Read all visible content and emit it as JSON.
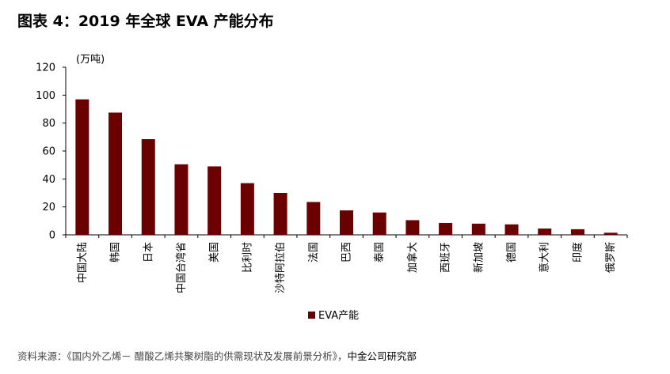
{
  "figure_title": "图表 4：2019 年全球 EVA 产能分布",
  "source_prefix": "资料来源：《国内外乙烯－ 醋酸乙烯共聚树脂的供需现状及发展前景分析》，",
  "source_org": "中金公司研究部",
  "colors": {
    "bar": "#6B0000",
    "axis": "#000000"
  },
  "chart_data": {
    "type": "bar",
    "title": "",
    "unit_label": "(万吨)",
    "xlabel": "",
    "ylabel": "",
    "ylim": [
      0,
      120
    ],
    "yticks": [
      0,
      20,
      40,
      60,
      80,
      100,
      120
    ],
    "grid": false,
    "legend_position": "bottom",
    "categories": [
      "中国大陆",
      "韩国",
      "日本",
      "中国台湾省",
      "美国",
      "比利时",
      "沙特阿拉伯",
      "法国",
      "巴西",
      "泰国",
      "加拿大",
      "西班牙",
      "新加坡",
      "德国",
      "意大利",
      "印度",
      "俄罗斯"
    ],
    "series": [
      {
        "name": "EVA产能",
        "values": [
          97,
          87.5,
          68.5,
          50.5,
          49,
          37,
          30,
          23.5,
          17.5,
          16,
          10.5,
          8.5,
          8,
          7.5,
          4.5,
          4,
          1.5
        ]
      }
    ]
  }
}
